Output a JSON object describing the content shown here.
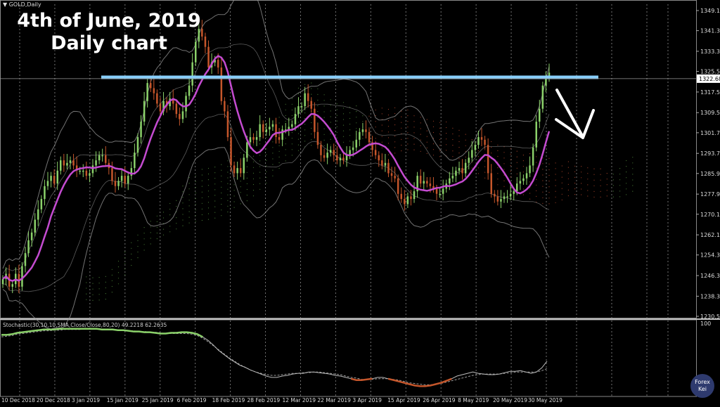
{
  "symbol": "GOLD,Daily",
  "overlay_title": [
    "4th of June, 2019",
    "Daily chart"
  ],
  "badge": [
    "Forex",
    "Kei"
  ],
  "colors": {
    "background": "#000000",
    "bull": "#8bd16a",
    "bear": "#c5562b",
    "ma": "#c44bd0",
    "resistance": "#87cefa",
    "bands": "#9a9a9a",
    "grid": "#cfcfcf",
    "cloud": "#b5462c",
    "cloud_alt": "#4f8a3c",
    "arrow": "#ffffff"
  },
  "chart_data": {
    "type": "candlestick",
    "y_ticks": [
      "1349.10",
      "1341.30",
      "1333.30",
      "1325.50",
      "1317.50",
      "1309.50",
      "1301.70",
      "1293.70",
      "1285.90",
      "1277.90",
      "1270.10",
      "1262.10",
      "1254.30",
      "1246.30",
      "1238.30",
      "1230.50"
    ],
    "ylim": [
      1230.5,
      1349.1
    ],
    "current_price": "1322.68",
    "x_ticks": [
      "10 Dec 2018",
      "20 Dec 2018",
      "3 Jan 2019",
      "15 Jan 2019",
      "25 Jan 2019",
      "6 Feb 2019",
      "18 Feb 2019",
      "28 Feb 2019",
      "12 Mar 2019",
      "22 Mar 2019",
      "3 Apr 2019",
      "15 Apr 2019",
      "26 Apr 2019",
      "8 May 2019",
      "20 May 2019",
      "30 May 2019"
    ],
    "resistance_level": 1323.2,
    "closes": [
      1245,
      1247,
      1242,
      1243,
      1247,
      1242,
      1250,
      1255,
      1260,
      1263,
      1268,
      1272,
      1276,
      1281,
      1283,
      1285,
      1282,
      1287,
      1291,
      1289,
      1290,
      1291,
      1289,
      1287,
      1287,
      1287,
      1285,
      1286,
      1289,
      1291,
      1293,
      1293,
      1290,
      1288,
      1283,
      1281,
      1283,
      1285,
      1282,
      1285,
      1288,
      1294,
      1300,
      1306,
      1314,
      1321,
      1319,
      1317,
      1313,
      1310,
      1314,
      1312,
      1315,
      1313,
      1309,
      1307,
      1310,
      1316,
      1320,
      1329,
      1337,
      1342,
      1339,
      1335,
      1327,
      1329,
      1330,
      1327,
      1314,
      1310,
      1300,
      1289,
      1286,
      1288,
      1286,
      1292,
      1298,
      1300,
      1299,
      1300,
      1305,
      1302,
      1303,
      1304,
      1305,
      1300,
      1299,
      1303,
      1303,
      1304,
      1305,
      1309,
      1312,
      1312,
      1317,
      1314,
      1311,
      1302,
      1297,
      1293,
      1292,
      1294,
      1295,
      1293,
      1291,
      1292,
      1291,
      1293,
      1295,
      1296,
      1299,
      1302,
      1303,
      1302,
      1298,
      1295,
      1293,
      1291,
      1289,
      1290,
      1286,
      1285,
      1284,
      1278,
      1276,
      1274,
      1277,
      1276,
      1279,
      1285,
      1282,
      1283,
      1282,
      1281,
      1280,
      1278,
      1278,
      1280,
      1282,
      1284,
      1285,
      1287,
      1288,
      1286,
      1290,
      1292,
      1295,
      1297,
      1300,
      1299,
      1297,
      1286,
      1278,
      1277,
      1275,
      1276,
      1277,
      1277,
      1278,
      1279,
      1282,
      1283,
      1284,
      1286,
      1289,
      1296,
      1306,
      1311,
      1320,
      1323,
      1325
    ],
    "oscillator": {
      "label": "Stochastic(30,10,10,SMA,Close/Close,80,20) 49.2218 62.2635",
      "levels": [
        "100"
      ],
      "main": [
        85,
        85,
        86,
        88,
        89,
        90,
        91,
        92,
        93,
        93,
        93,
        94,
        94,
        94,
        94,
        94,
        94,
        94,
        94,
        93,
        93,
        93,
        92,
        92,
        91,
        90,
        90,
        89,
        89,
        88,
        87,
        87,
        88,
        88,
        89,
        89,
        88,
        86,
        82,
        77,
        70,
        62,
        56,
        50,
        45,
        40,
        37,
        33,
        30,
        27,
        24,
        22,
        22,
        24,
        25,
        27,
        28,
        28,
        30,
        30,
        29,
        28,
        27,
        25,
        24,
        22,
        20,
        18,
        18,
        19,
        20,
        22,
        22,
        20,
        18,
        16,
        14,
        12,
        10,
        9,
        9,
        10,
        12,
        14,
        17,
        20,
        24,
        26,
        28,
        30,
        28,
        27,
        26,
        26,
        27,
        29,
        31,
        31,
        32,
        30,
        28,
        30,
        36,
        46
      ],
      "signal": [
        82,
        83,
        84,
        86,
        87,
        88,
        89,
        90,
        91,
        91,
        92,
        92,
        93,
        93,
        93,
        93,
        94,
        94,
        94,
        93,
        93,
        93,
        92,
        92,
        91,
        91,
        90,
        90,
        89,
        89,
        88,
        87,
        87,
        87,
        87,
        87,
        86,
        84,
        80,
        75,
        69,
        63,
        57,
        51,
        46,
        41,
        37,
        33,
        30,
        28,
        26,
        25,
        25,
        26,
        27,
        28,
        28,
        29,
        29,
        30,
        30,
        29,
        28,
        27,
        26,
        24,
        22,
        21,
        19,
        19,
        19,
        20,
        20,
        20,
        19,
        18,
        16,
        14,
        13,
        12,
        11,
        11,
        12,
        13,
        15,
        17,
        19,
        21,
        23,
        25,
        26,
        27,
        27,
        27,
        27,
        28,
        29,
        30,
        30,
        30,
        30,
        30,
        32,
        35
      ]
    }
  }
}
